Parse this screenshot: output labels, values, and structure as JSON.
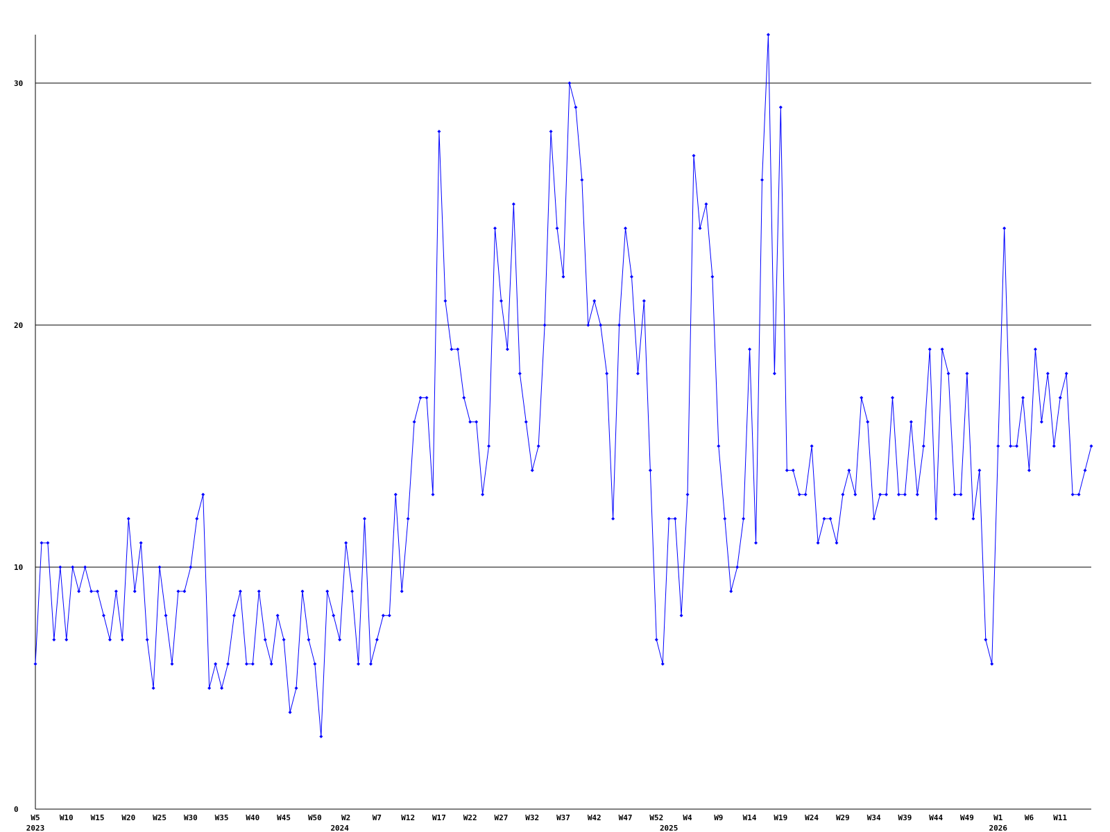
{
  "chart_data": {
    "type": "line",
    "categories": [
      "W5",
      null,
      null,
      null,
      null,
      "W10",
      null,
      null,
      null,
      null,
      "W15",
      null,
      null,
      null,
      null,
      "W20",
      null,
      null,
      null,
      null,
      "W25",
      null,
      null,
      null,
      null,
      "W30",
      null,
      null,
      null,
      null,
      "W35",
      null,
      null,
      null,
      null,
      "W40",
      null,
      null,
      null,
      null,
      "W45",
      null,
      null,
      null,
      null,
      "W50",
      null,
      null,
      null,
      null,
      "W2",
      null,
      null,
      null,
      null,
      "W7",
      null,
      null,
      null,
      null,
      "W12",
      null,
      null,
      null,
      null,
      "W17",
      null,
      null,
      null,
      null,
      "W22",
      null,
      null,
      null,
      null,
      "W27",
      null,
      null,
      null,
      null,
      "W32",
      null,
      null,
      null,
      null,
      "W37",
      null,
      null,
      null,
      null,
      "W42",
      null,
      null,
      null,
      null,
      "W47",
      null,
      null,
      null,
      null,
      "W52",
      null,
      null,
      null,
      null,
      "W4",
      null,
      null,
      null,
      null,
      "W9",
      null,
      null,
      null,
      null,
      "W14",
      null,
      null,
      null,
      null,
      "W19",
      null,
      null,
      null,
      null,
      "W24",
      null,
      null,
      null,
      null,
      "W29",
      null,
      null,
      null,
      null,
      "W34",
      null,
      null,
      null,
      null,
      "W39",
      null,
      null,
      null,
      null,
      "W44",
      null,
      null,
      null,
      null,
      "W49",
      null,
      null,
      null,
      null,
      "W1",
      null,
      null,
      null,
      null,
      "W6",
      null,
      null,
      null,
      null,
      "W11",
      null,
      null,
      null,
      null,
      null
    ],
    "x_groups": [
      "2023",
      null,
      null,
      null,
      null,
      null,
      null,
      null,
      null,
      null,
      null,
      null,
      null,
      null,
      null,
      null,
      null,
      null,
      null,
      null,
      null,
      null,
      null,
      null,
      null,
      null,
      null,
      null,
      null,
      null,
      null,
      null,
      null,
      null,
      null,
      null,
      null,
      null,
      null,
      null,
      null,
      null,
      null,
      null,
      null,
      null,
      null,
      null,
      null,
      "2024",
      null,
      null,
      null,
      null,
      null,
      null,
      null,
      null,
      null,
      null,
      null,
      null,
      null,
      null,
      null,
      null,
      null,
      null,
      null,
      null,
      null,
      null,
      null,
      null,
      null,
      null,
      null,
      null,
      null,
      null,
      null,
      null,
      null,
      null,
      null,
      null,
      null,
      null,
      null,
      null,
      null,
      null,
      null,
      null,
      null,
      null,
      null,
      null,
      null,
      null,
      null,
      null,
      "2025",
      null,
      null,
      null,
      null,
      null,
      null,
      null,
      null,
      null,
      null,
      null,
      null,
      null,
      null,
      null,
      null,
      null,
      null,
      null,
      null,
      null,
      null,
      null,
      null,
      null,
      null,
      null,
      null,
      null,
      null,
      null,
      null,
      null,
      null,
      null,
      null,
      null,
      null,
      null,
      null,
      null,
      null,
      null,
      null,
      null,
      null,
      null,
      null,
      null,
      null,
      null,
      null,
      "2026",
      null,
      null,
      null,
      null,
      null,
      null,
      null,
      null,
      null,
      null,
      null,
      null,
      null,
      null,
      null
    ],
    "values": [
      6,
      11,
      11,
      7,
      10,
      7,
      10,
      9,
      10,
      9,
      9,
      8,
      7,
      9,
      7,
      12,
      9,
      11,
      7,
      5,
      10,
      8,
      6,
      9,
      9,
      10,
      12,
      13,
      5,
      6,
      5,
      6,
      8,
      9,
      6,
      6,
      9,
      7,
      6,
      8,
      7,
      4,
      5,
      9,
      7,
      6,
      3,
      9,
      8,
      7,
      11,
      9,
      6,
      12,
      6,
      7,
      8,
      8,
      13,
      9,
      12,
      16,
      17,
      17,
      13,
      28,
      21,
      19,
      19,
      17,
      16,
      16,
      13,
      15,
      24,
      21,
      19,
      25,
      18,
      16,
      14,
      15,
      20,
      28,
      24,
      22,
      30,
      29,
      26,
      20,
      21,
      20,
      18,
      12,
      20,
      24,
      22,
      18,
      21,
      14,
      7,
      6,
      12,
      12,
      8,
      13,
      27,
      24,
      25,
      22,
      15,
      12,
      9,
      10,
      12,
      19,
      11,
      26,
      32,
      18,
      29,
      14,
      14,
      13,
      13,
      15,
      11,
      12,
      12,
      11,
      13,
      14,
      13,
      17,
      16,
      12,
      13,
      13,
      17,
      13,
      13,
      16,
      13,
      15,
      19,
      12,
      19,
      18,
      13,
      13,
      18,
      12,
      14,
      7,
      6,
      15,
      24,
      15,
      15,
      17,
      14,
      19,
      16,
      18,
      15,
      17,
      18,
      13,
      13,
      14,
      15
    ],
    "color": "#0000ff",
    "ylim": [
      0,
      32
    ],
    "yticks": [
      0,
      10,
      20,
      30
    ],
    "grid": true
  }
}
